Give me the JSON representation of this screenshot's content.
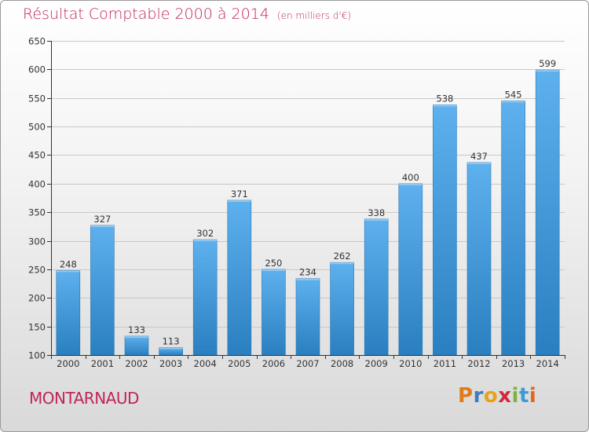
{
  "header": {
    "title": "Résultat Comptable 2000 à 2014",
    "unit": "(en milliers d'€)"
  },
  "footer": {
    "commune": "MONTARNAUD",
    "logo_text": "Proxiti"
  },
  "colors": {
    "title": "#c0245c",
    "bar_top": "#5eb1ee",
    "bar_bottom": "#2a7fc0",
    "grid": "#c8c8c8",
    "axis": "#333333"
  },
  "chart_data": {
    "type": "bar",
    "title": "Résultat Comptable 2000 à 2014",
    "subtitle": "(en milliers d'€)",
    "xlabel": "",
    "ylabel": "",
    "categories": [
      "2000",
      "2001",
      "2002",
      "2003",
      "2004",
      "2005",
      "2006",
      "2007",
      "2008",
      "2009",
      "2010",
      "2011",
      "2012",
      "2013",
      "2014"
    ],
    "values": [
      248,
      327,
      133,
      113,
      302,
      371,
      250,
      234,
      262,
      338,
      400,
      538,
      437,
      545,
      599
    ],
    "data_labels": [
      "248",
      "327",
      "133",
      "113",
      "302",
      "371",
      "250",
      "234",
      "262",
      "338",
      "400",
      "538",
      "437",
      "545",
      "599"
    ],
    "ylim": [
      100,
      650
    ],
    "yticks": [
      100,
      150,
      200,
      250,
      300,
      350,
      400,
      450,
      500,
      550,
      600,
      650
    ],
    "ytick_labels": [
      "100",
      "150",
      "200",
      "250",
      "300",
      "350",
      "400",
      "450",
      "500",
      "550",
      "600",
      "650"
    ],
    "grid": true,
    "legend": "none"
  }
}
